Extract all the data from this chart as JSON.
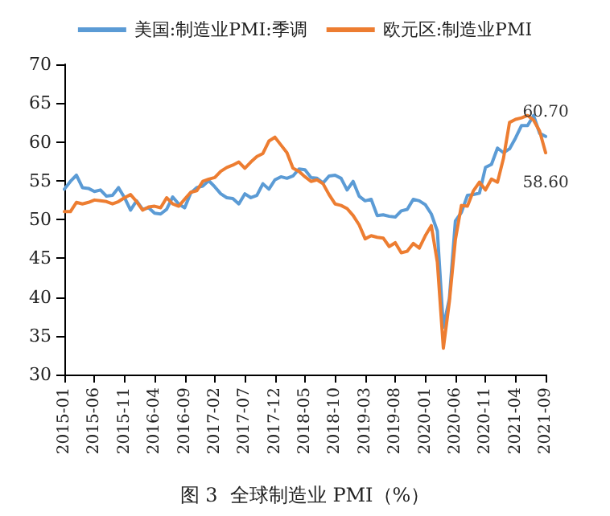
{
  "chart_data": {
    "type": "line",
    "title": "图 3  全球制造业 PMI（%）",
    "categories": [
      "2015-01",
      null,
      null,
      null,
      null,
      "2015-06",
      null,
      null,
      null,
      null,
      "2015-11",
      null,
      null,
      null,
      null,
      "2016-04",
      null,
      null,
      null,
      null,
      "2016-09",
      null,
      null,
      null,
      null,
      "2017-02",
      null,
      null,
      null,
      null,
      "2017-07",
      null,
      null,
      null,
      null,
      "2017-12",
      null,
      null,
      null,
      null,
      "2018-05",
      null,
      null,
      null,
      null,
      "2018-10",
      null,
      null,
      null,
      null,
      "2019-03",
      null,
      null,
      null,
      null,
      "2019-08",
      null,
      null,
      null,
      null,
      "2020-01",
      null,
      null,
      null,
      null,
      "2020-06",
      null,
      null,
      null,
      null,
      "2020-11",
      null,
      null,
      null,
      null,
      "2021-04",
      null,
      null,
      null,
      null,
      "2021-09"
    ],
    "series": [
      {
        "name": "美国:制造业PMI:季调",
        "color": "#5b9bd5",
        "values": [
          53.9,
          54.9,
          55.7,
          54.1,
          54.0,
          53.6,
          53.8,
          53.0,
          53.1,
          54.1,
          52.8,
          51.2,
          52.4,
          51.3,
          51.5,
          50.8,
          50.7,
          51.3,
          52.9,
          52.0,
          51.5,
          53.4,
          54.1,
          54.3,
          55.0,
          54.2,
          53.3,
          52.8,
          52.7,
          52.0,
          53.3,
          52.8,
          53.1,
          54.6,
          53.9,
          55.1,
          55.5,
          55.3,
          55.6,
          56.5,
          56.4,
          55.4,
          55.3,
          54.7,
          55.6,
          55.7,
          55.3,
          53.8,
          54.9,
          53.0,
          52.4,
          52.6,
          50.5,
          50.6,
          50.4,
          50.3,
          51.1,
          51.3,
          52.6,
          52.4,
          51.9,
          50.7,
          48.5,
          36.1,
          39.8,
          49.8,
          50.9,
          53.1,
          53.2,
          53.4,
          56.7,
          57.1,
          59.2,
          58.6,
          59.1,
          60.5,
          62.1,
          62.1,
          63.4,
          61.1,
          60.7
        ],
        "value_labels": [
          null,
          null,
          null,
          null,
          null,
          null,
          null,
          null,
          null,
          null,
          null,
          null,
          null,
          null,
          null,
          null,
          null,
          null,
          null,
          null,
          null,
          null,
          null,
          null,
          null,
          null,
          null,
          null,
          null,
          null,
          null,
          null,
          null,
          null,
          null,
          null,
          null,
          null,
          null,
          null,
          null,
          null,
          null,
          null,
          null,
          null,
          null,
          null,
          null,
          null,
          null,
          null,
          null,
          null,
          null,
          null,
          null,
          null,
          null,
          null,
          null,
          null,
          null,
          null,
          null,
          null,
          null,
          null,
          null,
          null,
          null,
          null,
          null,
          null,
          null,
          null,
          null,
          null,
          null,
          null,
          "60.70"
        ]
      },
      {
        "name": "欧元区:制造业PMI",
        "color": "#ed7d31",
        "values": [
          51.0,
          51.0,
          52.2,
          52.0,
          52.2,
          52.5,
          52.4,
          52.3,
          52.0,
          52.3,
          52.8,
          53.2,
          52.3,
          51.2,
          51.6,
          51.7,
          51.5,
          52.8,
          52.0,
          51.7,
          52.6,
          53.5,
          53.7,
          54.9,
          55.2,
          55.4,
          56.2,
          56.7,
          57.0,
          57.4,
          56.6,
          57.4,
          58.1,
          58.5,
          60.1,
          60.6,
          59.6,
          58.6,
          56.6,
          56.2,
          55.5,
          54.9,
          55.1,
          54.6,
          53.2,
          52.0,
          51.8,
          51.4,
          50.5,
          49.3,
          47.5,
          47.9,
          47.7,
          47.6,
          46.5,
          47.0,
          45.7,
          45.9,
          46.9,
          46.3,
          47.9,
          49.2,
          44.5,
          33.4,
          39.4,
          47.4,
          51.8,
          51.7,
          53.7,
          54.8,
          53.8,
          55.2,
          54.8,
          57.9,
          62.5,
          62.9,
          63.1,
          63.4,
          62.8,
          61.4,
          58.6
        ],
        "value_labels": [
          null,
          null,
          null,
          null,
          null,
          null,
          null,
          null,
          null,
          null,
          null,
          null,
          null,
          null,
          null,
          null,
          null,
          null,
          null,
          null,
          null,
          null,
          null,
          null,
          null,
          null,
          null,
          null,
          null,
          null,
          null,
          null,
          null,
          null,
          null,
          null,
          null,
          null,
          null,
          null,
          null,
          null,
          null,
          null,
          null,
          null,
          null,
          null,
          null,
          null,
          null,
          null,
          null,
          null,
          null,
          null,
          null,
          null,
          null,
          null,
          null,
          null,
          null,
          null,
          null,
          null,
          null,
          null,
          null,
          null,
          null,
          null,
          null,
          null,
          null,
          null,
          null,
          null,
          null,
          null,
          "58.60"
        ]
      }
    ],
    "ylim": [
      30,
      70
    ],
    "yticks": [
      30,
      35,
      40,
      45,
      50,
      55,
      60,
      65,
      70
    ],
    "grid": false,
    "legend": "top",
    "marker": "none",
    "line_style": "solid"
  }
}
